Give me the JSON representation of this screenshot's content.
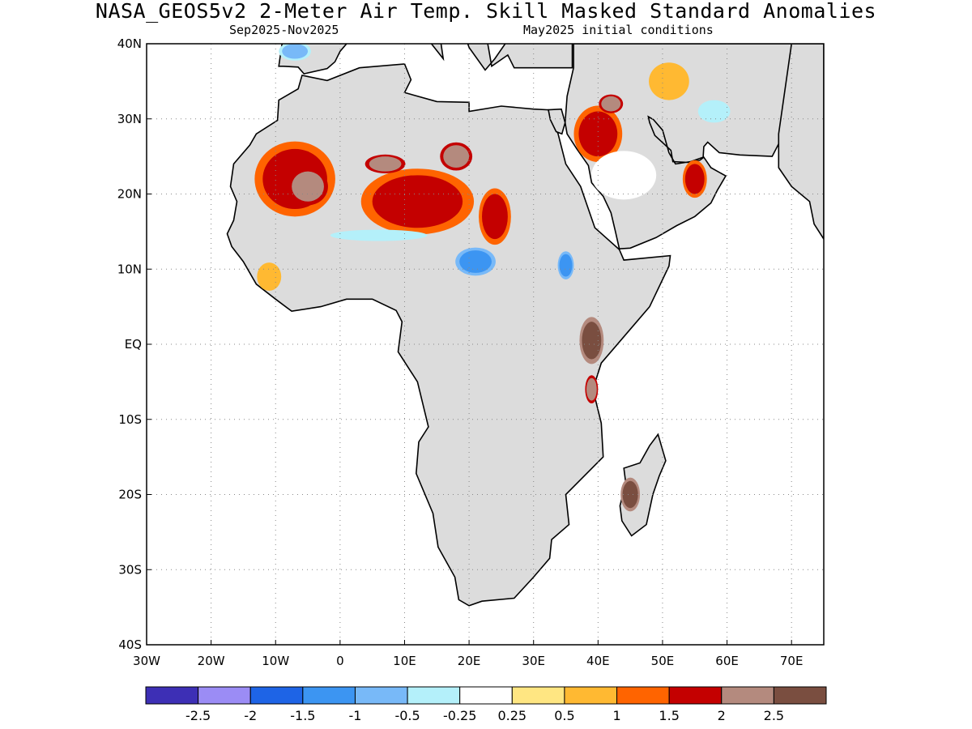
{
  "title": "NASA_GEOS5v2 2-Meter Air Temp. Skill Masked Standard Anomalies",
  "subtitle_left": "Sep2025-Nov2025",
  "subtitle_right": "May2025 initial conditions",
  "map": {
    "lon_range": [
      -30,
      75
    ],
    "lat_range": [
      -40,
      40
    ],
    "x_ticks": [
      {
        "lon": -30,
        "label": "30W"
      },
      {
        "lon": -20,
        "label": "20W"
      },
      {
        "lon": -10,
        "label": "10W"
      },
      {
        "lon": 0,
        "label": "0"
      },
      {
        "lon": 10,
        "label": "10E"
      },
      {
        "lon": 20,
        "label": "20E"
      },
      {
        "lon": 30,
        "label": "30E"
      },
      {
        "lon": 40,
        "label": "40E"
      },
      {
        "lon": 50,
        "label": "50E"
      },
      {
        "lon": 60,
        "label": "60E"
      },
      {
        "lon": 70,
        "label": "70E"
      }
    ],
    "y_ticks": [
      {
        "lat": 40,
        "label": "40N"
      },
      {
        "lat": 30,
        "label": "30N"
      },
      {
        "lat": 20,
        "label": "20N"
      },
      {
        "lat": 10,
        "label": "10N"
      },
      {
        "lat": 0,
        "label": "EQ"
      },
      {
        "lat": -10,
        "label": "10S"
      },
      {
        "lat": -20,
        "label": "20S"
      },
      {
        "lat": -30,
        "label": "30S"
      },
      {
        "lat": -40,
        "label": "40S"
      }
    ],
    "grid": true,
    "land_color": "#dcdcdc",
    "ocean_color": "#ffffff"
  },
  "colorbar": {
    "colors": [
      "#3d2fb5",
      "#9b8cf5",
      "#1e64e6",
      "#3c95f2",
      "#78b9f8",
      "#b4f0fa",
      "#ffffff",
      "#ffe682",
      "#ffb932",
      "#ff6400",
      "#c40000",
      "#b48a7e",
      "#7a4e40"
    ],
    "labels": [
      "-2.5",
      "-2",
      "-1.5",
      "-1",
      "-0.5",
      "-0.25",
      "0.25",
      "0.5",
      "1",
      "1.5",
      "2",
      "2.5"
    ]
  },
  "anomaly_regions": [
    {
      "name": "Mauritania-Mali",
      "lon": -7,
      "lat": 22,
      "rx": 5,
      "ry": 4,
      "value": 1.5
    },
    {
      "name": "Mali core",
      "lon": -5,
      "lat": 21,
      "rx": 2.5,
      "ry": 2,
      "value": 2
    },
    {
      "name": "Niger-Chad",
      "lon": 12,
      "lat": 19,
      "rx": 7,
      "ry": 3.5,
      "value": 1.5
    },
    {
      "name": "Niger north",
      "lon": 7,
      "lat": 24,
      "rx": 2.5,
      "ry": 1,
      "value": 2
    },
    {
      "name": "Libya-Chad border",
      "lon": 18,
      "lat": 25,
      "rx": 2,
      "ry": 1.5,
      "value": 2
    },
    {
      "name": "Sudan",
      "lon": 24,
      "lat": 17,
      "rx": 2,
      "ry": 3,
      "value": 1.5
    },
    {
      "name": "Saudi north",
      "lon": 40,
      "lat": 28,
      "rx": 3,
      "ry": 3,
      "value": 1.5
    },
    {
      "name": "Iraq",
      "lon": 42,
      "lat": 32,
      "rx": 1.5,
      "ry": 1,
      "value": 2
    },
    {
      "name": "Oman-UAE",
      "lon": 55,
      "lat": 22,
      "rx": 1.5,
      "ry": 2,
      "value": 1.5
    },
    {
      "name": "Sahel cold belt",
      "lon": 6,
      "lat": 14.5,
      "rx": 6,
      "ry": 0.6,
      "value": -0.5
    },
    {
      "name": "Central African cold",
      "lon": 21,
      "lat": 11,
      "rx": 2.5,
      "ry": 1.5,
      "value": -1.5
    },
    {
      "name": "Ethiopia cold",
      "lon": 35,
      "lat": 10.5,
      "rx": 1,
      "ry": 1.5,
      "value": -1.5
    },
    {
      "name": "Kenya warm",
      "lon": 39,
      "lat": 0.5,
      "rx": 1.5,
      "ry": 2.5,
      "value": 2.5
    },
    {
      "name": "Tanzania coast",
      "lon": 39,
      "lat": -6,
      "rx": 0.8,
      "ry": 1.5,
      "value": 2
    },
    {
      "name": "Madagascar",
      "lon": 45,
      "lat": -20,
      "rx": 1.2,
      "ry": 1.8,
      "value": 2.5
    },
    {
      "name": "Guinea coast",
      "lon": -11,
      "lat": 9,
      "rx": 1.5,
      "ry": 1.5,
      "value": 0.5
    },
    {
      "name": "Iran north",
      "lon": 51,
      "lat": 35,
      "rx": 2.5,
      "ry": 2,
      "value": 0.5
    },
    {
      "name": "Iran cold",
      "lon": 58,
      "lat": 31,
      "rx": 2,
      "ry": 1.2,
      "value": -0.5
    },
    {
      "name": "Morocco cold",
      "lon": -7,
      "lat": 39,
      "rx": 2,
      "ry": 1,
      "value": -1
    }
  ]
}
